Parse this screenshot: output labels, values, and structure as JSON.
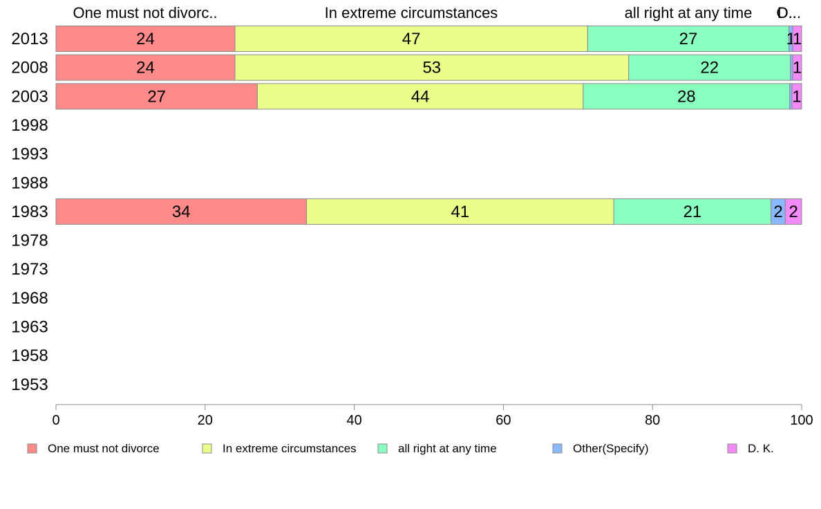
{
  "chart_data": {
    "type": "bar",
    "orientation": "horizontal",
    "stacked": true,
    "xlim": [
      0,
      100
    ],
    "x_ticks": [
      0,
      20,
      40,
      60,
      80,
      100
    ],
    "categories": [
      "2013",
      "2008",
      "2003",
      "1998",
      "1993",
      "1988",
      "1983",
      "1978",
      "1973",
      "1968",
      "1963",
      "1958",
      "1953"
    ],
    "column_labels": [
      "One must not divorc..",
      "In extreme circumstances",
      "all right at any time",
      "O..",
      "D..."
    ],
    "series": [
      {
        "name": "One must not divorce",
        "color": "#ff8a8a",
        "values": [
          24,
          24,
          27,
          null,
          null,
          null,
          33.6,
          null,
          null,
          null,
          null,
          null,
          null
        ],
        "labels": [
          "24",
          "24",
          "27",
          "",
          "",
          "",
          "34",
          "",
          "",
          "",
          "",
          "",
          ""
        ]
      },
      {
        "name": "In extreme circumstances",
        "color": "#ecfe8a",
        "values": [
          47.3,
          52.8,
          43.7,
          null,
          null,
          null,
          41.2,
          null,
          null,
          null,
          null,
          null,
          null
        ],
        "labels": [
          "47",
          "53",
          "44",
          "",
          "",
          "",
          "41",
          "",
          "",
          "",
          "",
          "",
          ""
        ]
      },
      {
        "name": "all right at any time",
        "color": "#8affbf",
        "values": [
          27,
          21.7,
          27.7,
          null,
          null,
          null,
          21.1,
          null,
          null,
          null,
          null,
          null,
          null
        ],
        "labels": [
          "27",
          "22",
          "28",
          "",
          "",
          "",
          "21",
          "",
          "",
          "",
          "",
          "",
          ""
        ]
      },
      {
        "name": "Other(Specify)",
        "color": "#8ab8fe",
        "values": [
          0.5,
          0.3,
          0.3,
          null,
          null,
          null,
          1.9,
          null,
          null,
          null,
          null,
          null,
          null
        ],
        "labels": [
          "1",
          "",
          "",
          "",
          "",
          "",
          "2",
          "",
          "",
          "",
          "",
          "",
          ""
        ]
      },
      {
        "name": "D. K.",
        "color": "#f28af8",
        "values": [
          1.2,
          1.2,
          1.3,
          null,
          null,
          null,
          2.2,
          null,
          null,
          null,
          null,
          null,
          null
        ],
        "labels": [
          "1",
          "1",
          "1",
          "",
          "",
          "",
          "2",
          "",
          "",
          "",
          "",
          "",
          ""
        ]
      }
    ],
    "legend": {
      "position": "bottom"
    },
    "grid": false
  }
}
